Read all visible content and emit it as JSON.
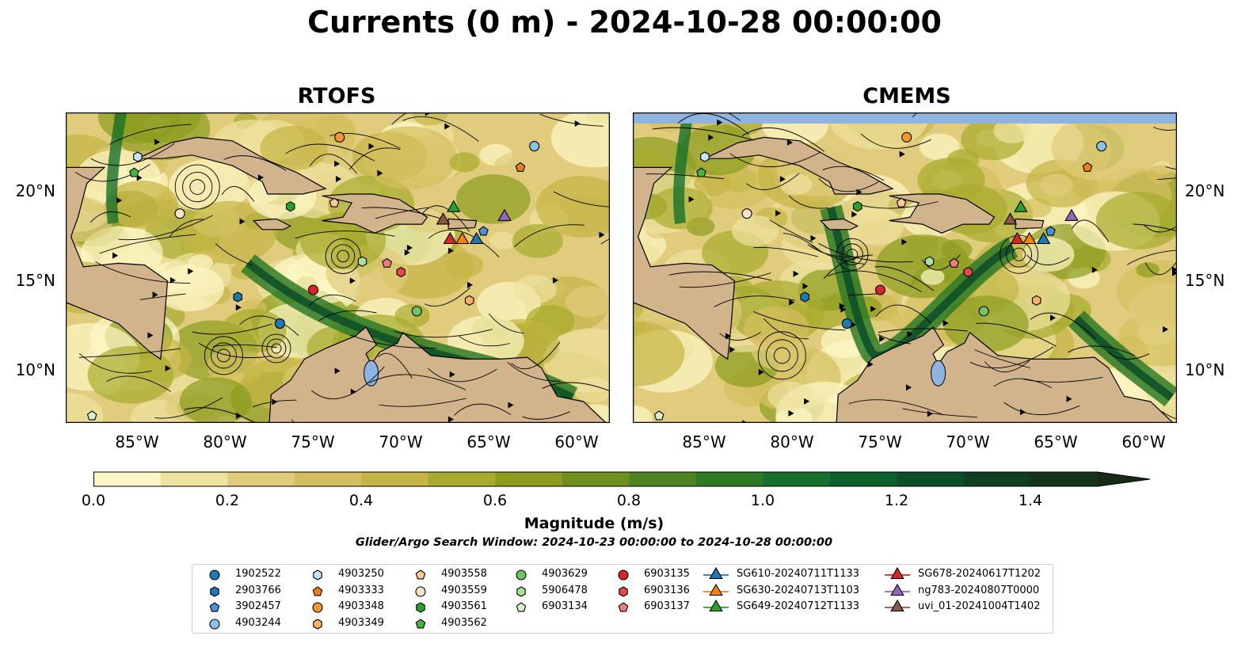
{
  "title": "Currents (0 m) - 2024-10-28 00:00:00",
  "panels": [
    {
      "title": "RTOFS"
    },
    {
      "title": "CMEMS"
    }
  ],
  "axes": {
    "x_ticks": [
      "85°W",
      "80°W",
      "75°W",
      "70°W",
      "65°W",
      "60°W"
    ],
    "y_ticks": [
      "20°N",
      "15°N",
      "10°N"
    ]
  },
  "colorbar": {
    "label": "Magnitude (m/s)",
    "ticks": [
      "0.0",
      "0.2",
      "0.4",
      "0.6",
      "0.8",
      "1.0",
      "1.2",
      "1.4"
    ],
    "colors": [
      "#fdf8c8",
      "#efe3a0",
      "#e0cc7c",
      "#d4bf5e",
      "#c5b545",
      "#a8ab2e",
      "#8c9d1f",
      "#6f8f1f",
      "#4f8424",
      "#2f7a26",
      "#16702c",
      "#0d5f2c",
      "#0b4e28",
      "#0e3f22",
      "#14321c",
      "#172a17"
    ]
  },
  "subtitle": "Glider/Argo Search Window: 2024-10-23 00:00:00 to 2024-10-28 00:00:00",
  "legend": [
    {
      "label": "1902522",
      "shape": "circle",
      "color": "#1f77b4"
    },
    {
      "label": "2903766",
      "shape": "hexagon",
      "color": "#1f77b4"
    },
    {
      "label": "3902457",
      "shape": "pentagon",
      "color": "#4a90d9"
    },
    {
      "label": "4903244",
      "shape": "circle",
      "color": "#8fc1e8"
    },
    {
      "label": "4903250",
      "shape": "hexagon",
      "color": "#c6e2f5"
    },
    {
      "label": "4903333",
      "shape": "pentagon",
      "color": "#f07f12"
    },
    {
      "label": "4903348",
      "shape": "circle",
      "color": "#f5962e"
    },
    {
      "label": "4903349",
      "shape": "hexagon",
      "color": "#fbb36b"
    },
    {
      "label": "4903558",
      "shape": "pentagon",
      "color": "#fdcb97"
    },
    {
      "label": "4903559",
      "shape": "circle",
      "color": "#fde3cc"
    },
    {
      "label": "4903561",
      "shape": "hexagon",
      "color": "#2ca02c"
    },
    {
      "label": "4903562",
      "shape": "pentagon",
      "color": "#46b23f"
    },
    {
      "label": "4903629",
      "shape": "circle",
      "color": "#6cc35f"
    },
    {
      "label": "5906478",
      "shape": "hexagon",
      "color": "#a8e09c"
    },
    {
      "label": "6903134",
      "shape": "pentagon",
      "color": "#d6f2cd"
    },
    {
      "label": "6903135",
      "shape": "circle",
      "color": "#d62728"
    },
    {
      "label": "6903136",
      "shape": "hexagon",
      "color": "#e5484a"
    },
    {
      "label": "6903137",
      "shape": "pentagon",
      "color": "#f07b7d"
    },
    {
      "label": "SG610-20240711T1133",
      "shape": "triangle",
      "color": "#1f77b4"
    },
    {
      "label": "SG630-20240713T1103",
      "shape": "triangle",
      "color": "#ff7f0e"
    },
    {
      "label": "SG649-20240712T1133",
      "shape": "triangle",
      "color": "#2ca02c"
    },
    {
      "label": "SG678-20240617T1202",
      "shape": "triangle",
      "color": "#d62728"
    },
    {
      "label": "ng783-20240807T0000",
      "shape": "triangle",
      "color": "#9467bd"
    },
    {
      "label": "uvi_01-20241004T1402",
      "shape": "triangle",
      "color": "#8c564b"
    }
  ],
  "markers": [
    {
      "id": "1902522",
      "lon": -76.8,
      "lat": 12.6
    },
    {
      "id": "2903766",
      "lon": -79.2,
      "lat": 14.1
    },
    {
      "id": "3902457",
      "lon": -65.2,
      "lat": 17.8
    },
    {
      "id": "4903244",
      "lon": -62.3,
      "lat": 22.6
    },
    {
      "id": "4903250",
      "lon": -84.9,
      "lat": 22.0
    },
    {
      "id": "4903333",
      "lon": -63.1,
      "lat": 21.4
    },
    {
      "id": "4903348",
      "lon": -73.4,
      "lat": 23.1
    },
    {
      "id": "4903349",
      "lon": -66.0,
      "lat": 13.9
    },
    {
      "id": "4903558",
      "lon": -73.7,
      "lat": 19.4
    },
    {
      "id": "4903559",
      "lon": -82.5,
      "lat": 18.8
    },
    {
      "id": "4903561",
      "lon": -76.2,
      "lat": 19.2
    },
    {
      "id": "4903562",
      "lon": -85.1,
      "lat": 21.1
    },
    {
      "id": "4903629",
      "lon": -69.0,
      "lat": 13.3
    },
    {
      "id": "5906478",
      "lon": -72.1,
      "lat": 16.1
    },
    {
      "id": "6903134",
      "lon": -87.5,
      "lat": 7.4
    },
    {
      "id": "6903135",
      "lon": -74.9,
      "lat": 14.5
    },
    {
      "id": "6903136",
      "lon": -69.9,
      "lat": 15.5
    },
    {
      "id": "6903137",
      "lon": -70.7,
      "lat": 16.0
    },
    {
      "id": "SG610-20240711T1133",
      "lon": -65.6,
      "lat": 17.4
    },
    {
      "id": "SG630-20240713T1103",
      "lon": -66.4,
      "lat": 17.4
    },
    {
      "id": "SG649-20240712T1133",
      "lon": -66.9,
      "lat": 19.2
    },
    {
      "id": "SG678-20240617T1202",
      "lon": -67.1,
      "lat": 17.4
    },
    {
      "id": "ng783-20240807T0000",
      "lon": -64.0,
      "lat": 18.7
    },
    {
      "id": "uvi_01-20241004T1402",
      "lon": -67.5,
      "lat": 18.5
    }
  ],
  "map_extent": {
    "lon": [
      -89,
      -58
    ],
    "lat": [
      7,
      24.5
    ]
  },
  "map_colors": {
    "land": "#d2b48c",
    "ocean_out": "#8fb4e0",
    "lake": "#8fb4e0"
  }
}
